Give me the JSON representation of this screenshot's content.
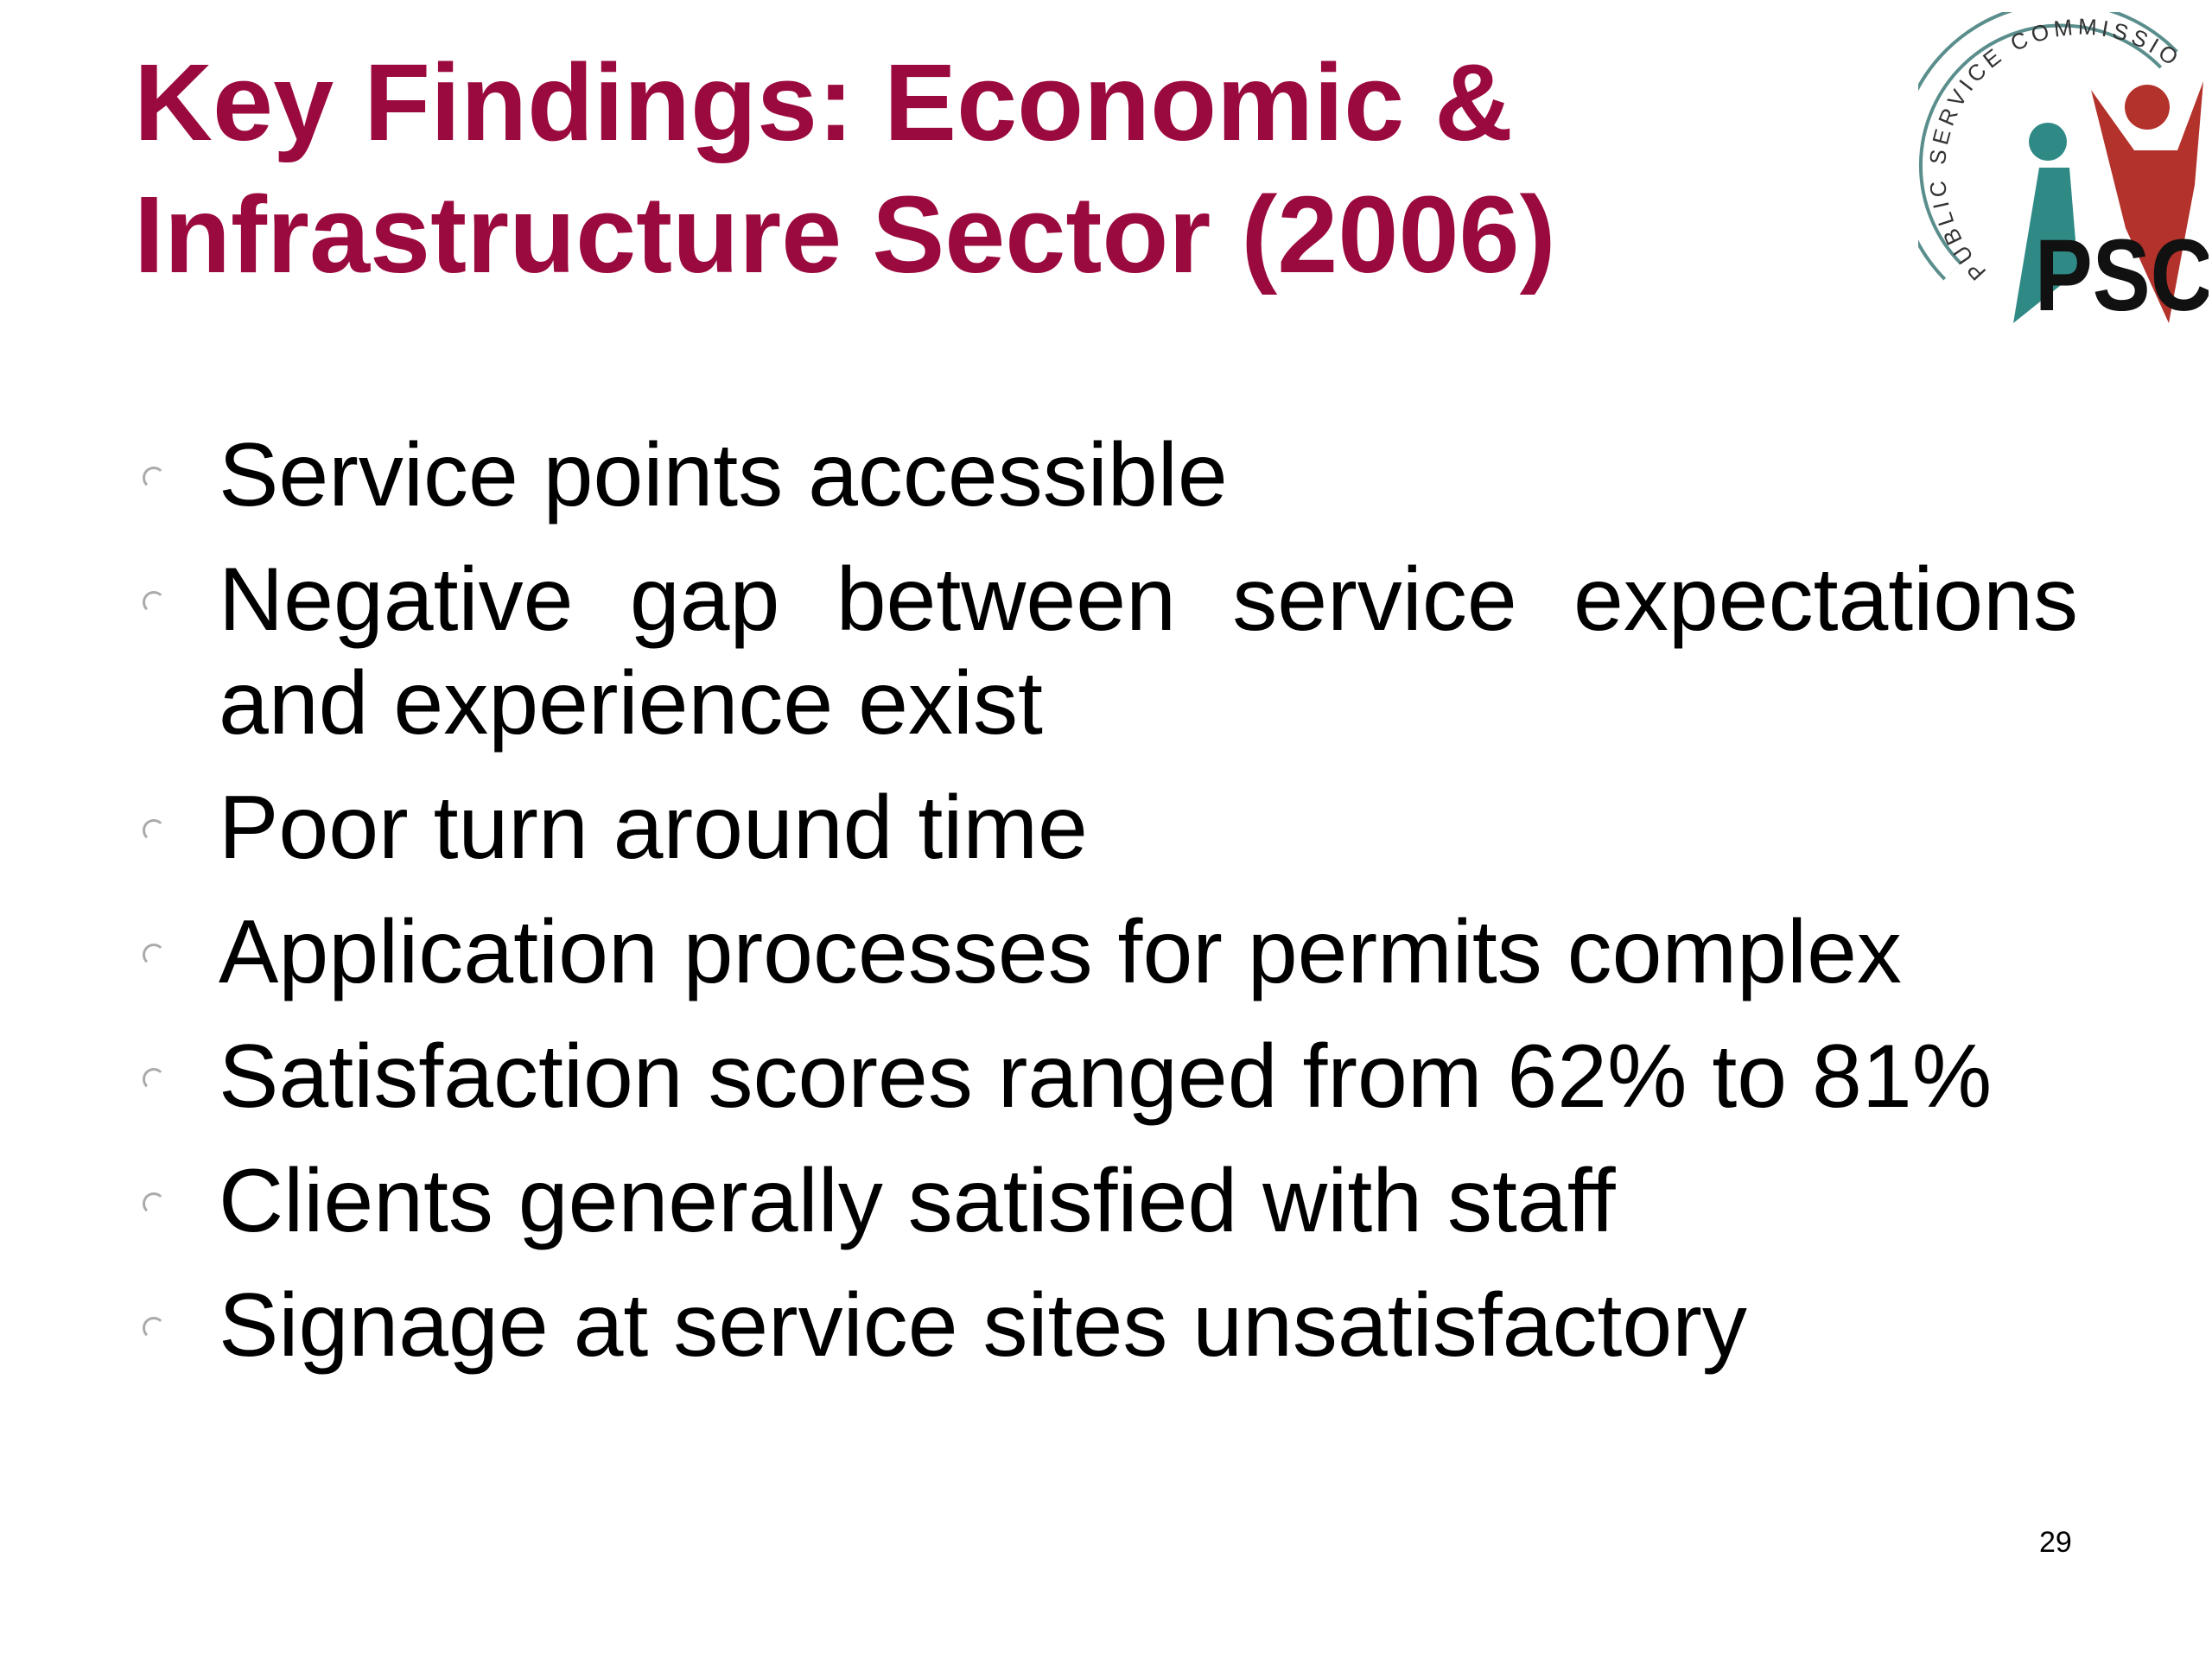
{
  "header": {
    "title": [
      "Key Findings:  Economic &",
      "Infrastructure Sector (2006)"
    ]
  },
  "logo": {
    "ring_text": "PUBLIC SERVICE COMMISSION",
    "acronym": "PSC"
  },
  "bullets": [
    "Service points accessible",
    "Negative gap between service expectations and experience exist",
    "Poor turn around time",
    "Application processes for permits complex",
    "Satisfaction scores ranged from 62% to 81%",
    "Clients generally satisfied with staff",
    "Signage at service sites unsatisfactory"
  ],
  "footer": {
    "page_number": "29"
  }
}
